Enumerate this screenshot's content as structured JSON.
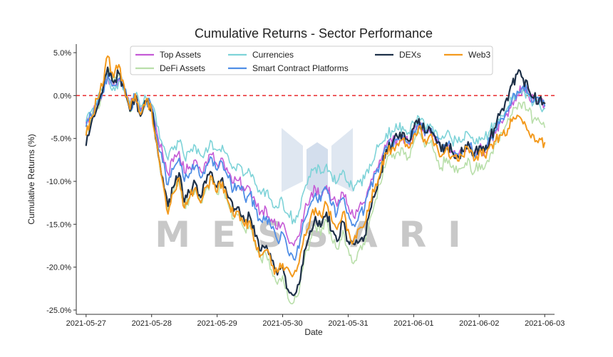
{
  "chart_data": {
    "type": "line",
    "title": "Cumulative Returns - Sector Performance",
    "xlabel": "Date",
    "ylabel": "Cumulative Returns (%)",
    "ylim": [
      -25.5,
      6.0
    ],
    "xlim": [
      -0.15,
      7.15
    ],
    "x_ticks": [
      {
        "pos": 0,
        "label": "2021-05-27"
      },
      {
        "pos": 1,
        "label": "2021-05-28"
      },
      {
        "pos": 2,
        "label": "2021-05-29"
      },
      {
        "pos": 3,
        "label": "2021-05-30"
      },
      {
        "pos": 4,
        "label": "2021-05-31"
      },
      {
        "pos": 5,
        "label": "2021-06-01"
      },
      {
        "pos": 6,
        "label": "2021-06-02"
      },
      {
        "pos": 7,
        "label": "2021-06-03"
      }
    ],
    "y_ticks": [
      {
        "value": 5,
        "label": "5.0%"
      },
      {
        "value": 0,
        "label": "0.0%"
      },
      {
        "value": -5,
        "label": "-5.0%"
      },
      {
        "value": -10,
        "label": "-10.0%"
      },
      {
        "value": -15,
        "label": "-15.0%"
      },
      {
        "value": -20,
        "label": "-20.0%"
      },
      {
        "value": -25,
        "label": "-25.0%"
      }
    ],
    "reference_line": {
      "value": 0,
      "color": "#e8262a",
      "style": "dashed"
    },
    "legend_position": "top-center",
    "watermark": {
      "text": "MESSARI"
    },
    "x_anchor_days": [
      0,
      0.08,
      0.17,
      0.25,
      0.33,
      0.42,
      0.5,
      0.58,
      0.67,
      0.75,
      0.83,
      0.92,
      1.0,
      1.08,
      1.17,
      1.25,
      1.33,
      1.42,
      1.5,
      1.58,
      1.67,
      1.75,
      1.83,
      1.92,
      2.0,
      2.08,
      2.17,
      2.25,
      2.33,
      2.42,
      2.5,
      2.58,
      2.67,
      2.75,
      2.83,
      2.92,
      3.0,
      3.08,
      3.17,
      3.25,
      3.33,
      3.42,
      3.5,
      3.58,
      3.67,
      3.75,
      3.83,
      3.92,
      4.0,
      4.08,
      4.17,
      4.25,
      4.33,
      4.42,
      4.5,
      4.58,
      4.67,
      4.75,
      4.83,
      4.92,
      5.0,
      5.08,
      5.17,
      5.25,
      5.33,
      5.42,
      5.5,
      5.58,
      5.67,
      5.75,
      5.83,
      5.92,
      6.0,
      6.08,
      6.17,
      6.25,
      6.33,
      6.42,
      6.5,
      6.58,
      6.67,
      6.75,
      6.83,
      6.92,
      7.0
    ],
    "base_anchor_values": [
      -4.0,
      -2.5,
      -1.0,
      0.5,
      3.0,
      1.5,
      2.5,
      1.0,
      -1.5,
      0.0,
      -2.0,
      -0.5,
      -1.5,
      -5.0,
      -8.5,
      -11.5,
      -9.5,
      -8.0,
      -11.0,
      -10.0,
      -9.0,
      -10.5,
      -9.0,
      -8.0,
      -9.5,
      -8.5,
      -10.5,
      -12.0,
      -11.5,
      -13.0,
      -12.5,
      -14.5,
      -16.0,
      -15.5,
      -17.0,
      -18.5,
      -17.5,
      -20.0,
      -21.0,
      -19.5,
      -16.0,
      -14.0,
      -12.5,
      -13.5,
      -12.0,
      -14.0,
      -15.0,
      -13.0,
      -15.0,
      -16.5,
      -15.0,
      -14.5,
      -12.0,
      -10.0,
      -8.5,
      -6.5,
      -6.0,
      -5.5,
      -5.0,
      -6.0,
      -4.5,
      -3.5,
      -5.0,
      -4.5,
      -5.5,
      -7.0,
      -6.0,
      -7.0,
      -7.5,
      -7.0,
      -6.0,
      -7.5,
      -6.5,
      -7.0,
      -5.5,
      -4.5,
      -3.0,
      -2.0,
      -0.5,
      0.5,
      1.5,
      0.5,
      -0.5,
      -0.5,
      -1.0
    ],
    "series": [
      {
        "name": "Top Assets",
        "color": "#c55bd6",
        "stroke_width": 1.6,
        "values": [
          -3.2,
          -2.2,
          -1.0,
          0.2,
          2.2,
          1.2,
          1.8,
          0.9,
          -1.1,
          -0.1,
          -1.6,
          -0.5,
          -1.2,
          -4.3,
          -6.8,
          -9.1,
          -7.7,
          -6.5,
          -9.0,
          -8.3,
          -7.5,
          -8.8,
          -7.7,
          -6.9,
          -8.1,
          -7.3,
          -9.0,
          -10.2,
          -9.9,
          -11.1,
          -10.8,
          -12.3,
          -13.5,
          -13.2,
          -14.4,
          -15.6,
          -14.8,
          -16.7,
          -17.5,
          -16.4,
          -13.6,
          -12.0,
          -10.8,
          -11.7,
          -10.5,
          -12.1,
          -12.9,
          -11.3,
          -12.9,
          -14.1,
          -12.9,
          -12.5,
          -10.5,
          -8.8,
          -7.6,
          -5.9,
          -5.5,
          -5.1,
          -4.6,
          -5.6,
          -4.2,
          -3.3,
          -4.7,
          -4.3,
          -5.2,
          -6.5,
          -5.6,
          -6.5,
          -7.0,
          -6.5,
          -5.6,
          -7.0,
          -6.1,
          -6.6,
          -5.2,
          -4.4,
          -3.0,
          -2.1,
          -0.7,
          0.1,
          0.9,
          0.2,
          -0.6,
          -0.7,
          -1.2
        ]
      },
      {
        "name": "DeFi Assets",
        "color": "#b9dfaa",
        "stroke_width": 1.6,
        "values": [
          -4.3,
          -2.8,
          -1.3,
          0.3,
          3.1,
          1.4,
          2.4,
          0.8,
          -1.9,
          -0.3,
          -2.4,
          -0.9,
          -1.9,
          -5.9,
          -10.0,
          -13.5,
          -11.3,
          -9.6,
          -13.0,
          -11.9,
          -10.8,
          -12.5,
          -10.9,
          -9.8,
          -11.5,
          -10.4,
          -12.7,
          -14.4,
          -13.9,
          -15.6,
          -15.1,
          -17.4,
          -19.1,
          -18.6,
          -20.3,
          -22.0,
          -21.0,
          -23.6,
          -24.1,
          -23.0,
          -19.1,
          -16.8,
          -15.1,
          -16.3,
          -14.6,
          -16.8,
          -17.9,
          -15.7,
          -17.9,
          -19.6,
          -17.9,
          -17.4,
          -14.4,
          -12.1,
          -10.2,
          -7.8,
          -7.2,
          -6.6,
          -6.1,
          -7.2,
          -5.5,
          -4.3,
          -6.0,
          -5.5,
          -6.7,
          -8.4,
          -7.3,
          -8.4,
          -9.0,
          -8.4,
          -7.3,
          -9.0,
          -7.9,
          -8.5,
          -6.8,
          -5.7,
          -4.3,
          -3.3,
          -2.2,
          -1.6,
          -0.8,
          -1.8,
          -2.8,
          -3.0,
          -3.7
        ]
      },
      {
        "name": "Currencies",
        "color": "#7ed3d8",
        "stroke_width": 1.6,
        "values": [
          -3.0,
          -1.8,
          -0.6,
          0.4,
          1.9,
          1.0,
          1.6,
          0.6,
          -1.0,
          0.0,
          -1.3,
          -0.4,
          -1.0,
          -3.5,
          -5.8,
          -7.5,
          -6.3,
          -5.4,
          -7.2,
          -6.6,
          -5.9,
          -7.0,
          -6.1,
          -5.4,
          -6.4,
          -5.8,
          -7.1,
          -8.3,
          -8.0,
          -9.2,
          -8.9,
          -10.3,
          -11.5,
          -11.1,
          -12.2,
          -13.1,
          -12.3,
          -13.8,
          -14.4,
          -13.5,
          -11.0,
          -9.5,
          -8.4,
          -9.1,
          -8.0,
          -9.4,
          -10.1,
          -8.7,
          -10.1,
          -11.1,
          -10.1,
          -9.7,
          -8.0,
          -6.6,
          -5.6,
          -4.4,
          -4.1,
          -3.9,
          -3.6,
          -4.3,
          -3.2,
          -2.5,
          -3.6,
          -3.3,
          -4.0,
          -5.1,
          -4.4,
          -5.1,
          -5.5,
          -5.1,
          -4.4,
          -5.5,
          -4.8,
          -5.1,
          -4.0,
          -3.3,
          -2.3,
          -1.6,
          -0.5,
          0.2,
          0.7,
          -0.1,
          -0.9,
          -1.0,
          -1.5
        ]
      },
      {
        "name": "Smart Contract Platforms",
        "color": "#4f8ee6",
        "stroke_width": 1.8,
        "values": [
          -3.6,
          -2.4,
          -1.1,
          0.3,
          2.5,
          1.2,
          2.0,
          0.8,
          -1.4,
          -0.1,
          -1.8,
          -0.6,
          -1.4,
          -4.7,
          -7.8,
          -10.4,
          -8.6,
          -7.3,
          -10.0,
          -9.1,
          -8.2,
          -9.6,
          -8.2,
          -7.3,
          -8.7,
          -7.8,
          -9.6,
          -11.0,
          -10.5,
          -11.9,
          -11.4,
          -13.2,
          -14.6,
          -14.1,
          -15.5,
          -16.9,
          -16.0,
          -18.2,
          -19.1,
          -17.8,
          -14.6,
          -12.8,
          -11.4,
          -12.3,
          -10.9,
          -12.8,
          -13.7,
          -11.9,
          -13.7,
          -15.0,
          -13.7,
          -13.2,
          -10.9,
          -9.1,
          -7.8,
          -5.9,
          -5.5,
          -5.0,
          -4.6,
          -5.5,
          -4.1,
          -3.2,
          -4.6,
          -4.1,
          -5.0,
          -6.4,
          -5.5,
          -6.4,
          -6.8,
          -6.4,
          -5.5,
          -6.8,
          -5.9,
          -6.4,
          -5.0,
          -4.1,
          -2.7,
          -1.8,
          -0.5,
          0.5,
          1.1,
          0.2,
          -0.7,
          -0.8,
          -1.2
        ]
      },
      {
        "name": "DEXs",
        "color": "#1e3048",
        "stroke_width": 2.2,
        "values": [
          -5.8,
          -3.2,
          -1.4,
          0.4,
          3.3,
          1.5,
          2.6,
          1.0,
          -1.8,
          0.0,
          -2.4,
          -0.7,
          -1.8,
          -5.6,
          -9.6,
          -12.9,
          -10.7,
          -9.0,
          -12.4,
          -11.3,
          -10.2,
          -11.9,
          -10.2,
          -9.0,
          -10.7,
          -9.6,
          -11.9,
          -13.5,
          -13.0,
          -14.7,
          -14.1,
          -16.4,
          -18.1,
          -17.5,
          -19.2,
          -20.9,
          -19.8,
          -22.6,
          -23.3,
          -22.0,
          -18.1,
          -15.8,
          -14.1,
          -15.3,
          -13.6,
          -15.8,
          -17.0,
          -14.7,
          -17.0,
          -17.3,
          -17.0,
          -16.4,
          -13.5,
          -11.3,
          -9.0,
          -6.3,
          -5.8,
          -4.8,
          -4.3,
          -5.3,
          -3.8,
          -2.7,
          -4.3,
          -3.8,
          -4.8,
          -6.5,
          -5.5,
          -6.5,
          -7.0,
          -6.5,
          -5.4,
          -7.0,
          -5.9,
          -6.5,
          -4.8,
          -3.7,
          -1.8,
          -0.3,
          1.3,
          2.5,
          2.0,
          0.8,
          -0.3,
          -0.3,
          -0.9
        ]
      },
      {
        "name": "Web3",
        "color": "#f39a1e",
        "stroke_width": 2.0,
        "values": [
          -4.6,
          -2.6,
          -0.4,
          1.1,
          4.6,
          2.1,
          3.6,
          1.2,
          -1.6,
          0.2,
          -2.2,
          -0.4,
          -1.7,
          -5.6,
          -10.1,
          -13.8,
          -11.4,
          -9.6,
          -13.1,
          -11.9,
          -10.7,
          -12.5,
          -10.7,
          -9.5,
          -11.3,
          -10.1,
          -12.4,
          -14.0,
          -13.5,
          -15.2,
          -14.6,
          -16.9,
          -18.6,
          -18.0,
          -19.8,
          -20.6,
          -19.6,
          -20.1,
          -20.8,
          -19.5,
          -16.2,
          -14.5,
          -13.1,
          -14.0,
          -12.6,
          -14.6,
          -15.6,
          -13.6,
          -15.6,
          -17.0,
          -15.5,
          -15.0,
          -12.4,
          -10.3,
          -8.8,
          -6.7,
          -6.1,
          -5.6,
          -5.1,
          -6.1,
          -4.6,
          -3.6,
          -5.1,
          -4.6,
          -5.6,
          -7.1,
          -6.1,
          -7.1,
          -7.6,
          -7.1,
          -6.1,
          -7.6,
          -6.6,
          -7.0,
          -5.7,
          -5.3,
          -4.6,
          -4.6,
          -3.0,
          -2.3,
          -3.3,
          -4.1,
          -4.6,
          -5.0,
          -5.5
        ]
      }
    ]
  }
}
